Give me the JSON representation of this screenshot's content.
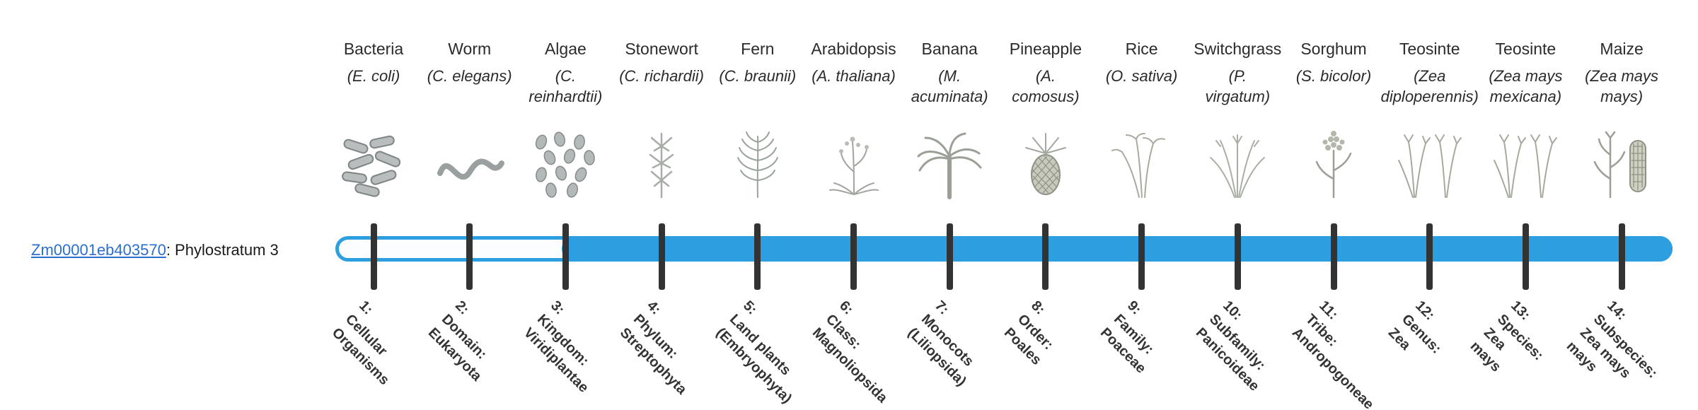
{
  "gene": {
    "id": "Zm00001eb403570",
    "rest": ": Phylostratum 3"
  },
  "bar": {
    "filled_from_stratum": 3,
    "total_strata": 14
  },
  "colors": {
    "bar_fill": "#2D9FE0",
    "bar_outline": "#2D9FE0",
    "bar_empty": "#fcfdfe",
    "tick": "#333333",
    "link": "#2A6FD0",
    "text": "#333333"
  },
  "organisms": [
    {
      "stratum": 1,
      "name": "Bacteria",
      "sci": "(E. coli)",
      "icon": "bacteria-icon",
      "stratum_label": "1:\nCellular\nOrganisms"
    },
    {
      "stratum": 2,
      "name": "Worm",
      "sci": "(C. elegans)",
      "icon": "worm-icon",
      "stratum_label": "2:\nDomain:\nEukaryota"
    },
    {
      "stratum": 3,
      "name": "Algae",
      "sci": "(C.\nreinhardtii)",
      "icon": "algae-icon",
      "stratum_label": "3:\nKingdom:\nViridiplantae"
    },
    {
      "stratum": 4,
      "name": "Stonewort",
      "sci": "(C. richardii)",
      "icon": "stonewort-icon",
      "stratum_label": "4:\nPhylum:\nStreptophyta"
    },
    {
      "stratum": 5,
      "name": "Fern",
      "sci": "(C. braunii)",
      "icon": "fern-icon",
      "stratum_label": "5:\nLand plants\n(Embryophyta)"
    },
    {
      "stratum": 6,
      "name": "Arabidopsis",
      "sci": "(A. thaliana)",
      "icon": "arabidopsis-icon",
      "stratum_label": "6:\nClass:\nMagnoliopsida"
    },
    {
      "stratum": 7,
      "name": "Banana",
      "sci": "(M.\nacuminata)",
      "icon": "banana-icon",
      "stratum_label": "7:\nMonocots\n(Liliopsida)"
    },
    {
      "stratum": 8,
      "name": "Pineapple",
      "sci": "(A.\ncomosus)",
      "icon": "pineapple-icon",
      "stratum_label": "8:\nOrder:\nPoales"
    },
    {
      "stratum": 9,
      "name": "Rice",
      "sci": "(O. sativa)",
      "icon": "rice-icon",
      "stratum_label": "9:\nFamily:\nPoaceae"
    },
    {
      "stratum": 10,
      "name": "Switchgrass",
      "sci": "(P.\nvirgatum)",
      "icon": "switchgrass-icon",
      "stratum_label": "10:\nSubfamily:\nPanicoideae"
    },
    {
      "stratum": 11,
      "name": "Sorghum",
      "sci": "(S. bicolor)",
      "icon": "sorghum-icon",
      "stratum_label": "11:\nTribe:\nAndropogoneae"
    },
    {
      "stratum": 12,
      "name": "Teosinte",
      "sci": "(Zea\ndiploperennis)",
      "icon": "teosinte-icon",
      "stratum_label": "12:\nGenus:\nZea"
    },
    {
      "stratum": 13,
      "name": "Teosinte",
      "sci": "(Zea mays\nmexicana)",
      "icon": "teosinte-icon",
      "stratum_label": "13:\nSpecies:\nZea\nmays"
    },
    {
      "stratum": 14,
      "name": "Maize",
      "sci": "(Zea mays\nmays)",
      "icon": "maize-icon",
      "stratum_label": "14:\nSubspecies:\nZea mays\nmays"
    }
  ]
}
